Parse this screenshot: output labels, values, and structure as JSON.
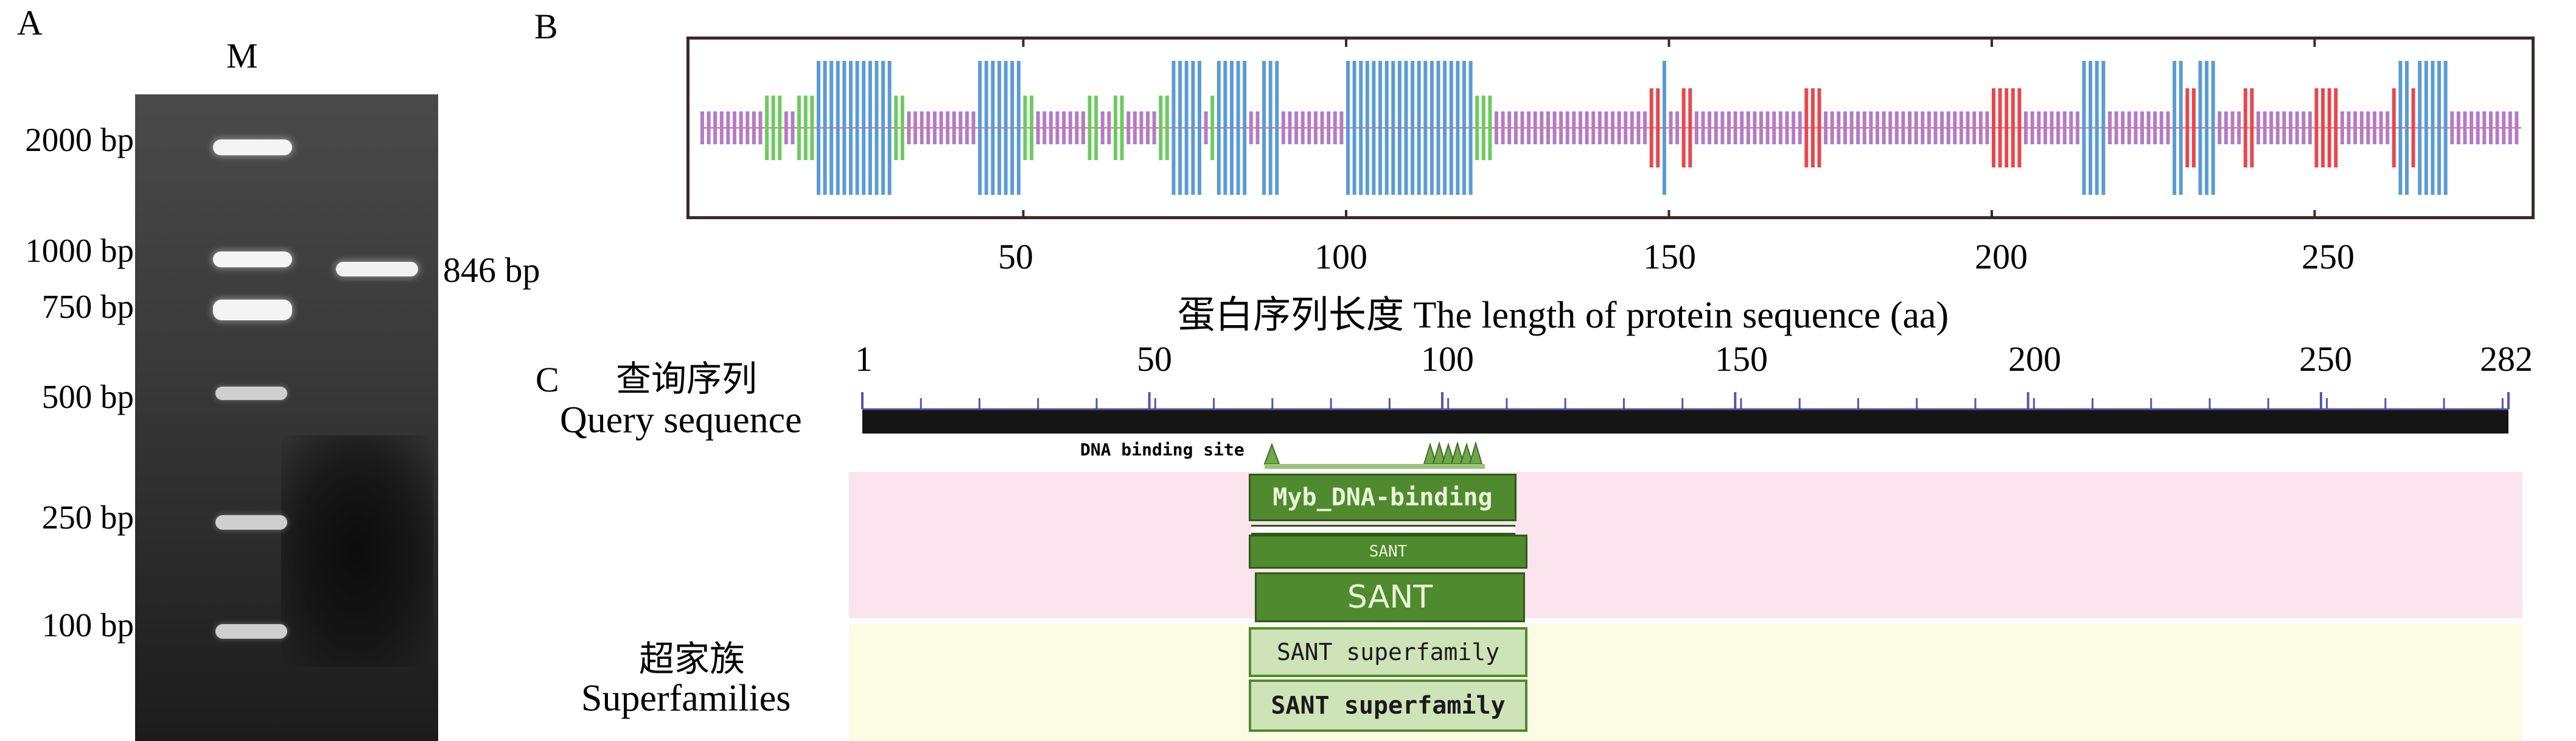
{
  "panelA": {
    "letter": "A",
    "lane_label": "M",
    "markers": [
      "2000 bp",
      "1000 bp",
      "750 bp",
      "500 bp",
      "250 bp",
      "100 bp"
    ],
    "product_label": "846 bp"
  },
  "panelB": {
    "letter": "B",
    "ticks": [
      "50",
      "100",
      "150",
      "200",
      "250"
    ],
    "xlabel": "蛋白序列长度 The length of protein sequence (aa)",
    "colors": {
      "purple": "#b57bc4",
      "blue": "#5b9bd5",
      "green": "#6ccb5f",
      "red": "#e8474c"
    }
  },
  "panelC": {
    "letter": "C",
    "query_label_cn": "查询序列",
    "query_label_en": "Query sequence",
    "ticks": [
      "1",
      "50",
      "100",
      "150",
      "200",
      "250",
      "282"
    ],
    "site_label": "DNA binding site",
    "domain1": "Myb_DNA-binding",
    "domain_small": "SANT",
    "domain2": "SANT",
    "superfamily_cn": "超家族",
    "superfamily_en": "Superfamilies",
    "sf1": "SANT superfamily",
    "sf2": "SANT superfamily",
    "colors": {
      "green": "#4f8a2e",
      "lightgreen": "#cfe3b8"
    }
  }
}
